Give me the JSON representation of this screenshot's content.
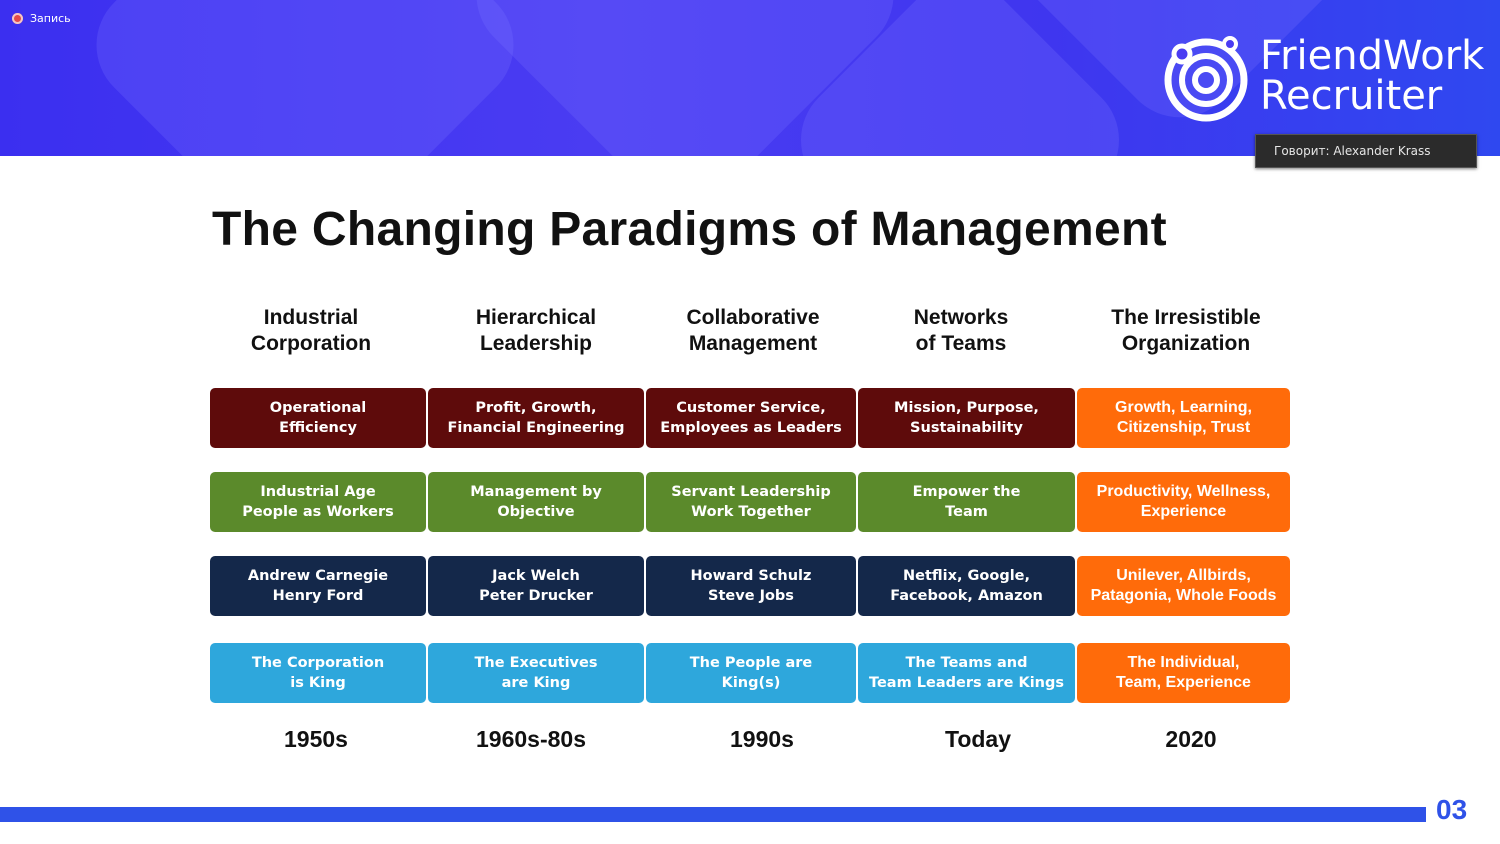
{
  "recording": {
    "label": "Запись"
  },
  "logo": {
    "line1": "FriendWork",
    "line2": "Recruiter"
  },
  "speaker": {
    "text": "Говорит: Alexander Krass"
  },
  "slide": {
    "title": "The Changing Paradigms of Management",
    "page_number": "03",
    "columns": [
      {
        "heading": "Industrial\nCorporation",
        "era": "1950s",
        "cells": [
          "Operational\nEfficiency",
          "Industrial Age\nPeople as Workers",
          "Andrew Carnegie\nHenry Ford",
          "The Corporation\nis King"
        ]
      },
      {
        "heading": "Hierarchical\nLeadership",
        "era": "1960s-80s",
        "cells": [
          "Profit, Growth,\nFinancial Engineering",
          "Management by\nObjective",
          "Jack Welch\nPeter Drucker",
          "The Executives\nare King"
        ]
      },
      {
        "heading": "Collaborative\nManagement",
        "era": "1990s",
        "cells": [
          "Customer Service,\nEmployees as Leaders",
          "Servant Leadership\nWork Together",
          "Howard Schulz\nSteve Jobs",
          "The People are\nKing(s)"
        ]
      },
      {
        "heading": "Networks\nof Teams",
        "era": "Today",
        "cells": [
          "Mission, Purpose,\nSustainability",
          "Empower the\nTeam",
          "Netflix, Google,\nFacebook, Amazon",
          "The Teams and\nTeam Leaders are Kings"
        ]
      },
      {
        "heading": "The Irresistible\nOrganization",
        "era": "2020",
        "cells": [
          "Growth, Learning,\nCitizenship, Trust",
          "Productivity, Wellness,\nExperience",
          "Unilever, Allbirds,\nPatagonia, Whole Foods",
          "The Individual,\nTeam, Experience"
        ]
      }
    ]
  },
  "colors": {
    "row1": "#5e0b0b",
    "row2": "#5b8a2b",
    "row3": "#14284a",
    "row4": "#2ea7dc",
    "highlight": "#ff6b0a",
    "accent": "#2f52e8"
  }
}
